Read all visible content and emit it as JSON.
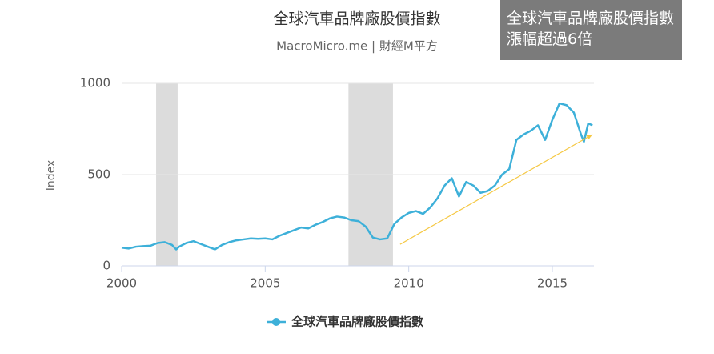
{
  "chart_data": {
    "type": "line",
    "title": "全球汽車品牌廠股價指數",
    "subtitle": "MacroMicro.me | 財經M平方",
    "annotation": "全球汽車品牌廠股價指數漲幅超過6倍",
    "y_label": "Index",
    "x": [
      2000,
      2000.25,
      2000.5,
      2000.75,
      2001,
      2001.25,
      2001.5,
      2001.75,
      2001.9,
      2002,
      2002.25,
      2002.5,
      2002.75,
      2003,
      2003.25,
      2003.5,
      2003.75,
      2004,
      2004.25,
      2004.5,
      2004.75,
      2005,
      2005.25,
      2005.5,
      2005.75,
      2006,
      2006.25,
      2006.5,
      2006.75,
      2007,
      2007.25,
      2007.5,
      2007.75,
      2008,
      2008.25,
      2008.5,
      2008.75,
      2009,
      2009.25,
      2009.5,
      2009.75,
      2010,
      2010.25,
      2010.5,
      2010.75,
      2011,
      2011.25,
      2011.5,
      2011.75,
      2012,
      2012.25,
      2012.5,
      2012.75,
      2013,
      2013.25,
      2013.5,
      2013.75,
      2014,
      2014.25,
      2014.5,
      2014.75,
      2015,
      2015.25,
      2015.5,
      2015.75,
      2016,
      2016.1,
      2016.25,
      2016.4
    ],
    "series": [
      {
        "name": "全球汽車品牌廠股價指數",
        "color": "#3db0d9",
        "values": [
          100,
          95,
          105,
          108,
          110,
          125,
          130,
          115,
          90,
          105,
          125,
          135,
          120,
          105,
          90,
          115,
          130,
          140,
          145,
          150,
          148,
          150,
          145,
          165,
          180,
          195,
          210,
          205,
          225,
          240,
          260,
          270,
          265,
          250,
          245,
          215,
          155,
          145,
          150,
          230,
          265,
          290,
          300,
          285,
          320,
          370,
          440,
          480,
          380,
          460,
          440,
          400,
          410,
          440,
          500,
          530,
          690,
          720,
          740,
          770,
          690,
          800,
          890,
          880,
          840,
          720,
          680,
          780,
          770
        ]
      }
    ],
    "shaded_ranges": [
      [
        2001.2,
        2001.95
      ],
      [
        2007.9,
        2009.45
      ]
    ],
    "trend_arrow": {
      "x": [
        2009.7,
        2016.4
      ],
      "y": [
        118,
        720
      ],
      "color": "#f5c842"
    },
    "xlim": [
      2000,
      2016.45
    ],
    "xticks": [
      2000,
      2005,
      2010,
      2015
    ],
    "ylim": [
      0,
      1000
    ],
    "yticks": [
      0,
      500,
      1000
    ],
    "grid": true
  }
}
